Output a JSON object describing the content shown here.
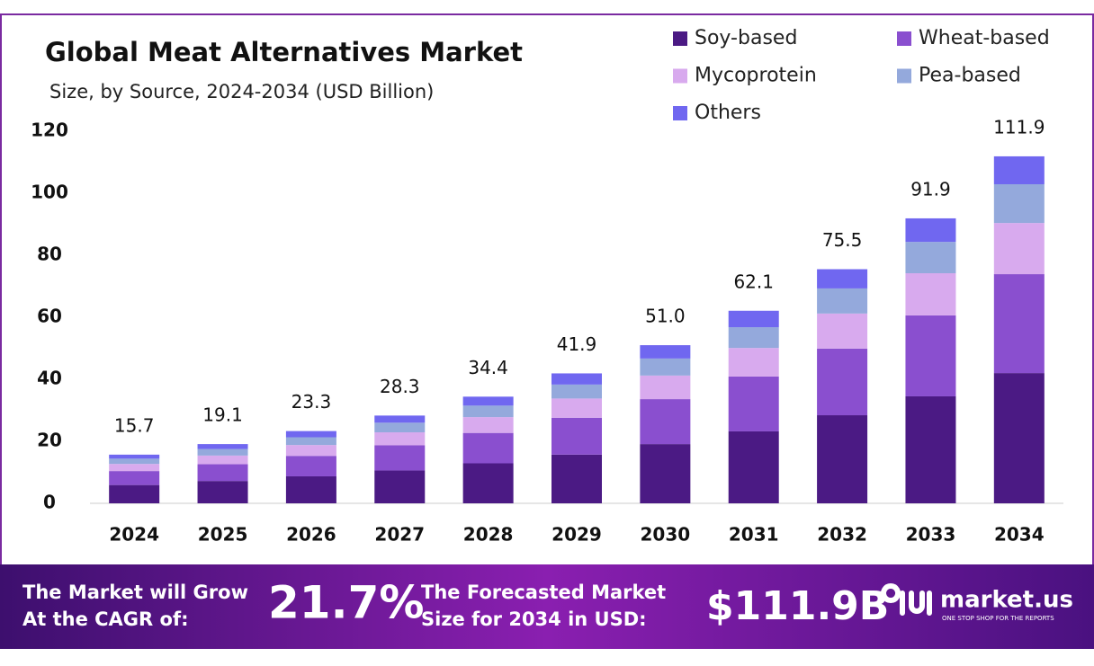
{
  "chart_data": {
    "type": "stacked-bar",
    "title": "Global Meat Alternatives Market",
    "subtitle": "Size, by Source, 2024-2034 (USD Billion)",
    "categories": [
      "2024",
      "2025",
      "2026",
      "2027",
      "2028",
      "2029",
      "2030",
      "2031",
      "2032",
      "2033",
      "2034"
    ],
    "series": [
      {
        "name": "Soy-based",
        "color": "#4b1a84",
        "values": [
          5.9,
          7.2,
          8.7,
          10.6,
          12.9,
          15.7,
          19.1,
          23.2,
          28.4,
          34.5,
          42.0
        ]
      },
      {
        "name": "Wheat-based",
        "color": "#8a4fcf",
        "values": [
          4.5,
          5.4,
          6.6,
          8.1,
          9.8,
          11.9,
          14.5,
          17.7,
          21.5,
          26.1,
          31.9
        ]
      },
      {
        "name": "Mycoprotein",
        "color": "#d8aaee",
        "values": [
          2.3,
          2.8,
          3.5,
          4.2,
          5.1,
          6.2,
          7.6,
          9.2,
          11.3,
          13.6,
          16.5
        ]
      },
      {
        "name": "Pea-based",
        "color": "#94a9dc",
        "values": [
          1.7,
          2.1,
          2.5,
          3.1,
          3.7,
          4.5,
          5.5,
          6.7,
          8.1,
          10.1,
          12.5
        ]
      },
      {
        "name": "Others",
        "color": "#7067f0",
        "values": [
          1.3,
          1.6,
          2.0,
          2.3,
          2.9,
          3.6,
          4.3,
          5.3,
          6.2,
          7.6,
          9.0
        ]
      }
    ],
    "totals": [
      15.7,
      19.1,
      23.3,
      28.3,
      34.4,
      41.9,
      51.0,
      62.1,
      75.5,
      91.9,
      111.9
    ],
    "total_labels": [
      "15.7",
      "19.1",
      "23.3",
      "28.3",
      "34.4",
      "41.9",
      "51.0",
      "62.1",
      "75.5",
      "91.9",
      "111.9"
    ],
    "ylim": [
      0,
      120
    ],
    "yticks": [
      0,
      20,
      40,
      60,
      80,
      100,
      120
    ],
    "grid": false
  },
  "footer": {
    "cagr_text": [
      "The Market will Grow",
      "At the CAGR of:"
    ],
    "cagr": "21.7%",
    "forecast_text": [
      "The Forecasted Market",
      "Size for 2034 in USD:"
    ],
    "forecast": "$111.9B",
    "brand": "market.us",
    "tagline": "ONE STOP SHOP FOR THE REPORTS"
  }
}
